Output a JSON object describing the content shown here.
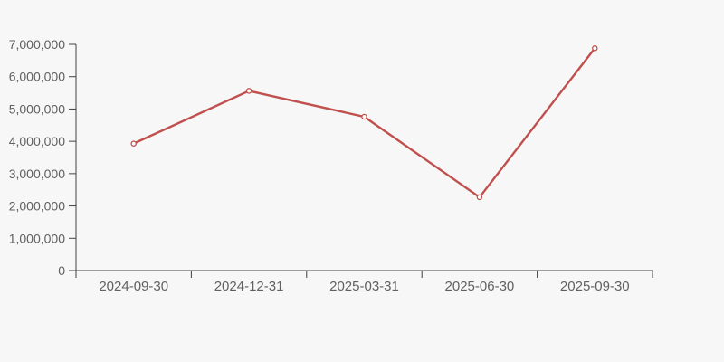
{
  "chart_data": {
    "type": "line",
    "title": "",
    "xlabel": "",
    "ylabel": "",
    "categories": [
      "2024-09-30",
      "2024-12-31",
      "2025-03-31",
      "2025-06-30",
      "2025-09-30"
    ],
    "series": [
      {
        "name": "series-1",
        "values": [
          3930000,
          5560000,
          4760000,
          2270000,
          6880000
        ]
      }
    ],
    "ylim": [
      0,
      7000000
    ],
    "ytick_interval": 1000000,
    "ytick_labels": [
      "0",
      "1,000,000",
      "2,000,000",
      "3,000,000",
      "4,000,000",
      "5,000,000",
      "6,000,000",
      "7,000,000"
    ],
    "grid": false,
    "legend_position": "none",
    "marker": "open-circle",
    "colors": {
      "background": "#f7f7f7",
      "line": "#c0504d",
      "marker_fill": "#ffffff",
      "axis": "#404040",
      "tick_label": "#606060"
    }
  }
}
